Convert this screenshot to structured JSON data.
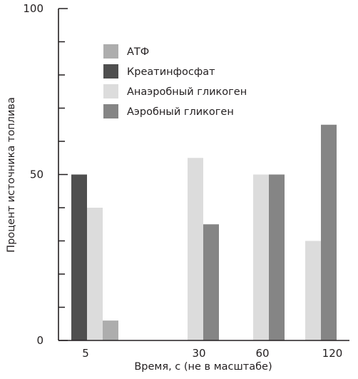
{
  "chart_data": {
    "type": "bar",
    "xlabel": "Время, с (не в масштабе)",
    "ylabel": "Процент источника топлива",
    "ylim": [
      0,
      100
    ],
    "yticks_labeled": [
      0,
      50,
      100
    ],
    "categories": [
      "5",
      "30",
      "60",
      "120"
    ],
    "legend_position": "top-center",
    "grid": false,
    "series": [
      {
        "name": "АТФ",
        "color": "#adadad",
        "values": [
          6,
          null,
          null,
          null
        ]
      },
      {
        "name": "Креатинфосфат",
        "color": "#4f4f4f",
        "values": [
          50,
          null,
          null,
          null
        ]
      },
      {
        "name": "Анаэробный гликоген",
        "color": "#dcdcdc",
        "values": [
          40,
          55,
          50,
          30
        ]
      },
      {
        "name": "Аэробный гликоген",
        "color": "#858585",
        "values": [
          null,
          35,
          50,
          65
        ]
      }
    ],
    "bar_order": [
      "Креатинфосфат",
      "Анаэробный гликоген",
      "АТФ",
      "Аэробный гликоген"
    ]
  }
}
